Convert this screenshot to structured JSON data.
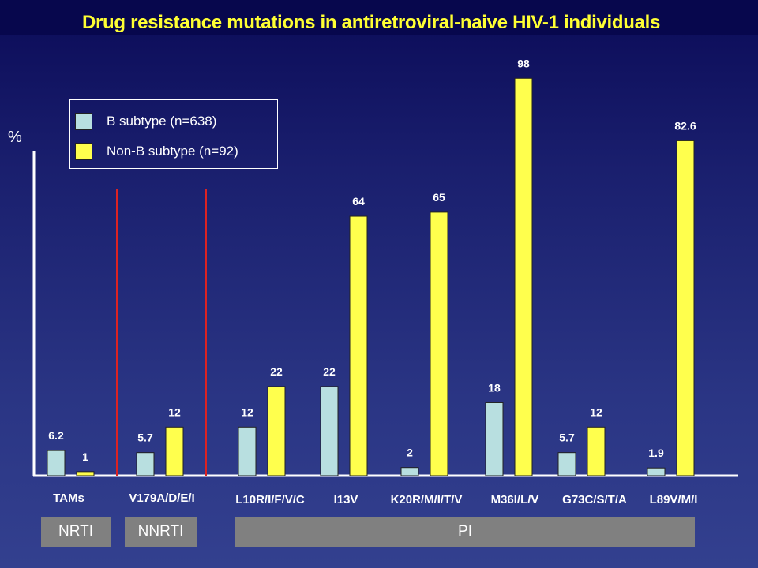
{
  "chart_data": {
    "type": "bar",
    "title": "Drug resistance mutations in antiretroviral-naive HIV-1 individuals",
    "ylabel": "%",
    "xlabel": "",
    "ylim": [
      0,
      100
    ],
    "grid": false,
    "legend_position": "top-left",
    "categories": [
      "TAMs",
      "V179A/D/E/I",
      "L10R/I/F/V/C",
      "I13V",
      "K20R/M/I/T/V",
      "M36I/L/V",
      "G73C/S/T/A",
      "L89V/M/I"
    ],
    "series": [
      {
        "name": "B subtype (n=638)",
        "color": "#b8dfe0",
        "values": [
          6.2,
          5.7,
          12,
          22,
          2,
          18,
          5.7,
          1.9
        ],
        "labels": [
          "6.2",
          "5.7",
          "12",
          "22",
          "2",
          "18",
          "5.7",
          "1.9"
        ]
      },
      {
        "name": "Non-B subtype (n=92)",
        "color": "#ffff4d",
        "values": [
          1,
          12,
          22,
          64,
          65,
          98,
          12,
          82.6
        ],
        "labels": [
          "1",
          "12",
          "22",
          "64",
          "65",
          "98",
          "12",
          "82.6"
        ]
      }
    ],
    "drug_classes": [
      "NRTI",
      "NNRTI",
      "PI"
    ],
    "separator_color": "#dd2222"
  }
}
